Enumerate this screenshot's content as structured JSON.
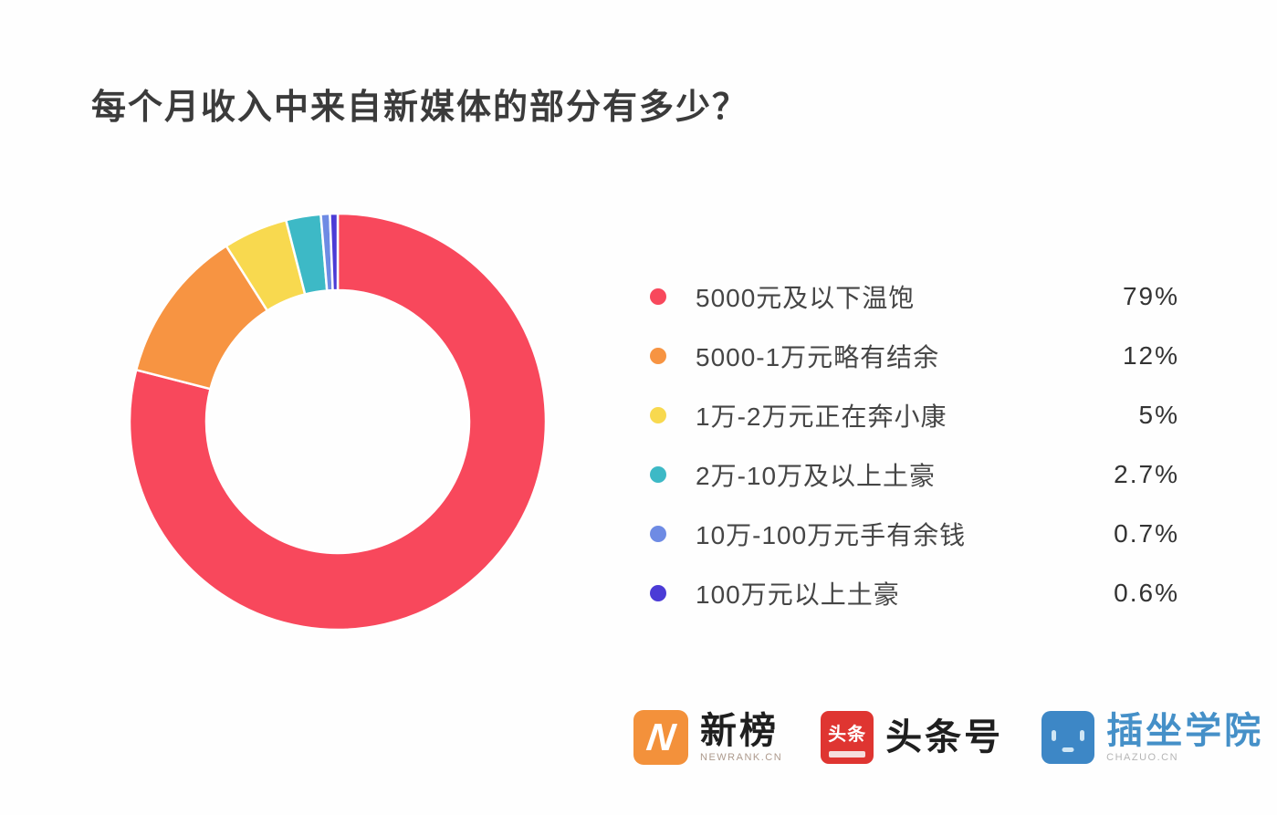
{
  "title": "每个月收入中来自新媒体的部分有多少？",
  "chart_data": {
    "type": "pie",
    "subtype": "donut",
    "title": "每个月收入中来自新媒体的部分有多少？",
    "categories": [
      "5000元及以下温饱",
      "5000-1万元略有结余",
      "1万-2万元正在奔小康",
      "2万-10万及以上土豪",
      "10万-100万元手有余钱",
      "100万元以上土豪"
    ],
    "values": [
      79,
      12,
      5,
      2.7,
      0.7,
      0.6
    ],
    "value_labels": [
      "79%",
      "12%",
      "5%",
      "2.7%",
      "0.7%",
      "0.6%"
    ],
    "colors": [
      "#f8485c",
      "#f79442",
      "#f8d94f",
      "#3db9c6",
      "#6e8be4",
      "#4b3bd6"
    ],
    "start_angle_deg": 0,
    "direction": "clockwise",
    "inner_radius_ratio": 0.63,
    "slice_gap_color": "#ffffff",
    "legend_position": "right",
    "background": "#ffffff"
  },
  "footer": {
    "logos": [
      {
        "name": "新榜",
        "subtext": "NEWRANK.CN",
        "icon": "newrank-n-icon",
        "icon_color": "#f3913b",
        "icon_glyph": "N"
      },
      {
        "name": "头条号",
        "subtext": "",
        "icon": "toutiao-icon",
        "icon_color": "#df3531",
        "icon_glyph": "头条"
      },
      {
        "name": "插坐学院",
        "subtext": "CHAZUO.CN",
        "icon": "chazuo-face-icon",
        "icon_color": "#3d87c6",
        "icon_glyph": ""
      }
    ]
  }
}
